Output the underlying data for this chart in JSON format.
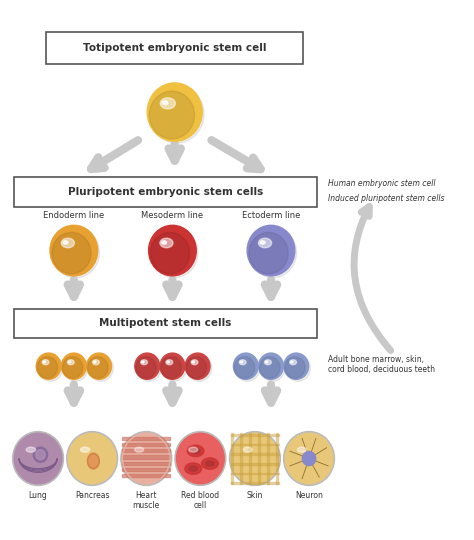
{
  "bg_color": "#ffffff",
  "title_box": "Totipotent embryonic stem cell",
  "pluripotent_box": "Pluripotent embryonic stem cells",
  "multipotent_box": "Multipotent stem cells",
  "line_labels": [
    "Endoderm line",
    "Mesoderm line",
    "Ectoderm line"
  ],
  "side_labels_top": [
    "Human embryonic stem cell",
    "Induced pluripotent stem cells"
  ],
  "side_label_bottom": "Adult bone marrow, skin,\ncord blood, deciduous teeth",
  "final_labels": [
    "Lung",
    "Pancreas",
    "Heart\nmuscle",
    "Red blood\ncell",
    "Skin",
    "Neuron"
  ],
  "arrow_color": "#c8c8c8",
  "box_edge_color": "#555555",
  "text_color": "#333333",
  "totipotent_color": "#f0c040",
  "endoderm_color": "#e8a030",
  "mesoderm_color": "#cc3333",
  "ectoderm_color": "#8888cc",
  "multi_orange": "#e8a030",
  "multi_red": "#cc4444",
  "multi_blue": "#8899cc",
  "lung_color": "#9977aa",
  "pancreas_color": "#e8c070",
  "heart_color": "#cc6655",
  "rbc_color": "#cc4444",
  "skin_color": "#e8c070",
  "neuron_color": "#e8c870"
}
